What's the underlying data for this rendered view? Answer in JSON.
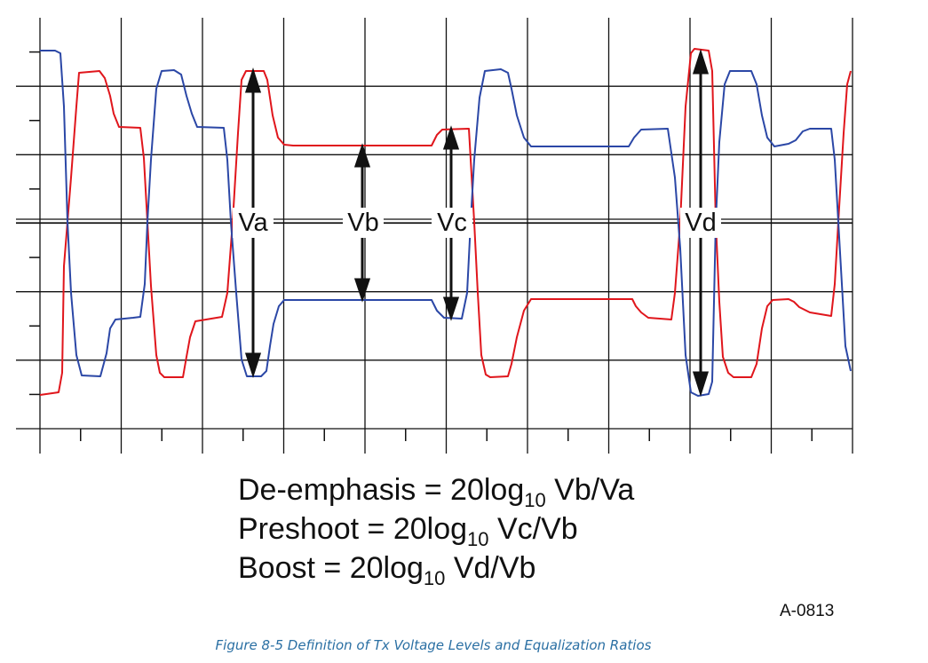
{
  "diagram": {
    "labels": {
      "va": "Va",
      "vb": "Vb",
      "vc": "Vc",
      "vd": "Vd"
    },
    "colors": {
      "red_trace": "#e0161c",
      "blue_trace": "#2b47a6",
      "grid": "#111111",
      "arrow": "#111111"
    }
  },
  "formulas": [
    {
      "lhs": "De-emphasis = 20log",
      "sub": "10",
      "rhs": " Vb/Va"
    },
    {
      "lhs": "Preshoot = 20log",
      "sub": "10",
      "rhs": " Vc/Vb"
    },
    {
      "lhs": "Boost = 20log",
      "sub": "10",
      "rhs": " Vd/Vb"
    }
  ],
  "figure_id": "A-0813",
  "caption": "Figure  8-5  Definition of Tx Voltage Levels and Equalization Ratios"
}
